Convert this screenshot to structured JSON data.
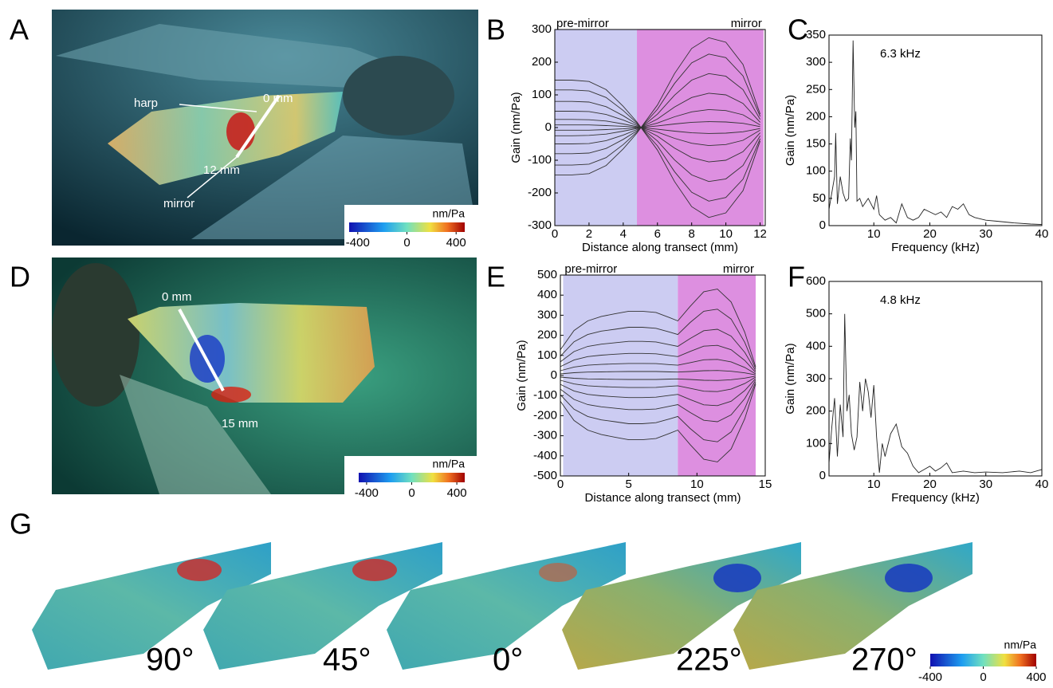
{
  "panel_labels": [
    "A",
    "B",
    "C",
    "D",
    "E",
    "F",
    "G"
  ],
  "image_a": {
    "annotations": [
      "harp",
      "0 mm",
      "12 mm",
      "mirror"
    ],
    "colorbar": {
      "unit": "nm/Pa",
      "lim": [
        -470,
        470
      ],
      "ticks": [
        -400,
        0,
        400
      ]
    }
  },
  "image_d": {
    "annotations": [
      "0 mm",
      "15 mm"
    ],
    "colorbar": {
      "unit": "nm/Pa",
      "lim": [
        -470,
        470
      ],
      "ticks": [
        -400,
        0,
        400
      ]
    }
  },
  "panel_g": {
    "angles": [
      "90°",
      "45°",
      "0°",
      "225°",
      "270°"
    ],
    "colorbar": {
      "unit": "nm/Pa",
      "lim": [
        -400,
        400
      ],
      "ticks": [
        -400,
        0,
        400
      ]
    }
  },
  "chart_data": [
    {
      "type": "line",
      "xlabel": "Distance along transect (mm)",
      "ylabel": "Gain (nm/Pa)",
      "xlim": [
        0,
        12.3
      ],
      "ylim": [
        -300,
        300
      ],
      "xticks": [
        0,
        2,
        4,
        6,
        8,
        10,
        12
      ],
      "yticks": [
        -300,
        -200,
        -100,
        0,
        100,
        200,
        300
      ],
      "regions": [
        {
          "label": "pre-mirror",
          "from": 0,
          "to": 4.8,
          "color": "#ccccf2"
        },
        {
          "label": "mirror",
          "from": 4.8,
          "to": 12.2,
          "color": "#dd8fe0"
        }
      ],
      "x": [
        0,
        1,
        2,
        3,
        4,
        4.8,
        6,
        7,
        8,
        9,
        10,
        11,
        12
      ],
      "series": [
        {
          "color": "#333333",
          "values": [
            145,
            145,
            141,
            116,
            65,
            17,
            -69,
            -165,
            -242,
            -275,
            -261,
            -193,
            -41
          ]
        },
        {
          "color": "#333333",
          "values": [
            115,
            115,
            112,
            92,
            52,
            14,
            -56,
            -135,
            -198,
            -225,
            -214,
            -158,
            -34
          ]
        },
        {
          "color": "#333333",
          "values": [
            80,
            80,
            78,
            64,
            36,
            10,
            -41,
            -99,
            -145,
            -165,
            -157,
            -116,
            -25
          ]
        },
        {
          "color": "#333333",
          "values": [
            50,
            50,
            49,
            40,
            23,
            6,
            -26,
            -63,
            -92,
            -105,
            -100,
            -74,
            -16
          ]
        },
        {
          "color": "#333333",
          "values": [
            25,
            25,
            24,
            20,
            11,
            3,
            -14,
            -33,
            -48,
            -55,
            -52,
            -39,
            -8
          ]
        },
        {
          "color": "#333333",
          "values": [
            8,
            8,
            8,
            6,
            4,
            1,
            -5,
            -11,
            -16,
            -18,
            -17,
            -13,
            -3
          ]
        },
        {
          "color": "#333333",
          "values": [
            -8,
            -8,
            -8,
            -6,
            -4,
            -1,
            5,
            11,
            16,
            18,
            17,
            13,
            3
          ]
        },
        {
          "color": "#333333",
          "values": [
            -25,
            -25,
            -24,
            -20,
            -11,
            -3,
            14,
            33,
            48,
            55,
            52,
            39,
            8
          ]
        },
        {
          "color": "#333333",
          "values": [
            -50,
            -50,
            -49,
            -40,
            -23,
            -6,
            26,
            63,
            92,
            105,
            100,
            74,
            16
          ]
        },
        {
          "color": "#333333",
          "values": [
            -80,
            -80,
            -78,
            -64,
            -36,
            -10,
            41,
            99,
            145,
            165,
            157,
            116,
            25
          ]
        },
        {
          "color": "#333333",
          "values": [
            -115,
            -115,
            -112,
            -92,
            -52,
            -14,
            56,
            135,
            198,
            225,
            214,
            158,
            34
          ]
        },
        {
          "color": "#333333",
          "values": [
            -145,
            -145,
            -141,
            -116,
            -65,
            -17,
            69,
            165,
            242,
            275,
            261,
            193,
            41
          ]
        }
      ]
    },
    {
      "type": "line",
      "xlabel": "Distance along transect (mm)",
      "ylabel": "Gain (nm/Pa)",
      "xlim": [
        0,
        15
      ],
      "ylim": [
        -500,
        500
      ],
      "xticks": [
        0,
        5,
        10,
        15
      ],
      "yticks": [
        -500,
        -400,
        -300,
        -200,
        -100,
        0,
        100,
        200,
        300,
        400,
        500
      ],
      "regions": [
        {
          "label": "pre-mirror",
          "from": 0.2,
          "to": 8.6,
          "color": "#ccccf2"
        },
        {
          "label": "mirror",
          "from": 8.6,
          "to": 14.3,
          "color": "#dd8fe0"
        }
      ],
      "x": [
        0,
        1,
        2,
        3,
        4,
        5,
        6,
        7,
        8,
        8.6,
        9.5,
        10.5,
        11.5,
        12.5,
        13.5,
        14.3
      ],
      "series": [
        {
          "color": "#333333",
          "values": [
            128,
            224,
            272,
            294,
            307,
            320,
            320,
            314,
            288,
            272,
            344,
            417,
            430,
            366,
            215,
            43
          ]
        },
        {
          "color": "#333333",
          "values": [
            96,
            168,
            204,
            221,
            230,
            240,
            240,
            235,
            216,
            204,
            264,
            320,
            330,
            281,
            165,
            33
          ]
        },
        {
          "color": "#333333",
          "values": [
            68,
            119,
            145,
            156,
            163,
            170,
            170,
            167,
            153,
            145,
            184,
            223,
            230,
            196,
            115,
            23
          ]
        },
        {
          "color": "#333333",
          "values": [
            44,
            77,
            94,
            101,
            106,
            110,
            110,
            108,
            99,
            94,
            120,
            146,
            150,
            128,
            75,
            15
          ]
        },
        {
          "color": "#333333",
          "values": [
            24,
            42,
            51,
            55,
            58,
            60,
            60,
            59,
            54,
            51,
            64,
            78,
            80,
            68,
            40,
            8
          ]
        },
        {
          "color": "#333333",
          "values": [
            8,
            14,
            17,
            18,
            19,
            20,
            20,
            20,
            18,
            17,
            20,
            24,
            25,
            21,
            13,
            3
          ]
        },
        {
          "color": "#333333",
          "values": [
            -8,
            -14,
            -17,
            -18,
            -19,
            -20,
            -20,
            -20,
            -18,
            -17,
            -20,
            -24,
            -25,
            -21,
            -13,
            -3
          ]
        },
        {
          "color": "#333333",
          "values": [
            -24,
            -42,
            -51,
            -55,
            -58,
            -60,
            -60,
            -59,
            -54,
            -51,
            -64,
            -78,
            -80,
            -68,
            -40,
            -8
          ]
        },
        {
          "color": "#333333",
          "values": [
            -44,
            -77,
            -94,
            -101,
            -106,
            -110,
            -110,
            -108,
            -99,
            -94,
            -120,
            -146,
            -150,
            -128,
            -75,
            -15
          ]
        },
        {
          "color": "#333333",
          "values": [
            -68,
            -119,
            -145,
            -156,
            -163,
            -170,
            -170,
            -167,
            -153,
            -145,
            -184,
            -223,
            -230,
            -196,
            -115,
            -23
          ]
        },
        {
          "color": "#333333",
          "values": [
            -96,
            -168,
            -204,
            -221,
            -230,
            -240,
            -240,
            -235,
            -216,
            -204,
            -264,
            -320,
            -330,
            -281,
            -165,
            -33
          ]
        },
        {
          "color": "#333333",
          "values": [
            -128,
            -224,
            -272,
            -294,
            -307,
            -320,
            -320,
            -314,
            -288,
            -272,
            -344,
            -417,
            -430,
            -366,
            -215,
            -43
          ]
        }
      ]
    },
    {
      "type": "line",
      "xlabel": "Frequency (kHz)",
      "ylabel": "Gain (nm/Pa)",
      "annotation": "6.3 kHz",
      "xlim": [
        2,
        40
      ],
      "ylim": [
        0,
        350
      ],
      "xticks": [
        10,
        20,
        30,
        40
      ],
      "yticks": [
        0,
        50,
        100,
        150,
        200,
        250,
        300,
        350
      ],
      "x": [
        2,
        2.5,
        3,
        3.2,
        3.5,
        4,
        4.5,
        5,
        5.5,
        5.8,
        6,
        6.3,
        6.6,
        6.8,
        7,
        7.5,
        8,
        9,
        10,
        10.5,
        11,
        12,
        13,
        14,
        15,
        16,
        17,
        18,
        19,
        20,
        21,
        22,
        23,
        24,
        25,
        26,
        27,
        28,
        30,
        32,
        35,
        38,
        40
      ],
      "series": [
        {
          "color": "#222222",
          "values": [
            30,
            60,
            90,
            170,
            40,
            90,
            60,
            45,
            50,
            160,
            120,
            340,
            180,
            210,
            45,
            50,
            35,
            50,
            30,
            55,
            20,
            10,
            15,
            5,
            40,
            15,
            10,
            15,
            30,
            25,
            20,
            25,
            15,
            35,
            30,
            40,
            20,
            15,
            10,
            8,
            5,
            3,
            2
          ]
        }
      ]
    },
    {
      "type": "line",
      "xlabel": "Frequency (kHz)",
      "ylabel": "Gain (nm/Pa)",
      "annotation": "4.8 kHz",
      "xlim": [
        2,
        40
      ],
      "ylim": [
        0,
        600
      ],
      "xticks": [
        10,
        20,
        30,
        40
      ],
      "yticks": [
        0,
        100,
        200,
        300,
        400,
        500,
        600
      ],
      "x": [
        2,
        2.5,
        3,
        3.5,
        4,
        4.5,
        4.8,
        5.2,
        5.6,
        6,
        6.5,
        7,
        7.5,
        8,
        8.5,
        9,
        9.5,
        10,
        10.5,
        11,
        11.5,
        12,
        13,
        14,
        15,
        16,
        17,
        18,
        19,
        20,
        21,
        22,
        23,
        24,
        26,
        28,
        30,
        33,
        36,
        38,
        40
      ],
      "series": [
        {
          "color": "#222222",
          "values": [
            40,
            150,
            240,
            60,
            220,
            120,
            500,
            200,
            250,
            130,
            80,
            120,
            290,
            200,
            300,
            260,
            180,
            280,
            120,
            10,
            100,
            60,
            130,
            160,
            90,
            70,
            30,
            10,
            20,
            30,
            15,
            25,
            40,
            10,
            15,
            10,
            12,
            10,
            15,
            10,
            20
          ]
        }
      ]
    }
  ]
}
